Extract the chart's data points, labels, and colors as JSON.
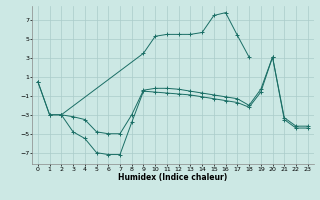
{
  "xlabel": "Humidex (Indice chaleur)",
  "background_color": "#cce8e4",
  "grid_color": "#aaccca",
  "line_color": "#1a6e65",
  "xlim": [
    -0.5,
    23.5
  ],
  "ylim": [
    -8.2,
    8.5
  ],
  "yticks": [
    -7,
    -5,
    -3,
    -1,
    1,
    3,
    5,
    7
  ],
  "xticks": [
    0,
    1,
    2,
    3,
    4,
    5,
    6,
    7,
    8,
    9,
    10,
    11,
    12,
    13,
    14,
    15,
    16,
    17,
    18,
    19,
    20,
    21,
    22,
    23
  ],
  "series1_x": [
    0,
    1,
    2,
    9,
    10,
    11,
    12,
    13,
    14,
    15,
    16,
    17,
    18
  ],
  "series1_y": [
    0.5,
    -3.0,
    -3.0,
    3.5,
    5.3,
    5.5,
    5.5,
    5.5,
    5.7,
    7.5,
    7.8,
    5.4,
    3.1
  ],
  "series2_x": [
    2,
    3,
    4,
    5,
    6,
    7,
    8,
    9,
    10,
    11,
    12,
    13,
    14,
    15,
    16,
    17,
    18,
    19,
    20,
    21,
    22,
    23
  ],
  "series2_y": [
    -3.0,
    -4.8,
    -5.5,
    -7.0,
    -7.2,
    -7.2,
    -3.8,
    -0.5,
    -0.6,
    -0.7,
    -0.8,
    -0.9,
    -1.1,
    -1.3,
    -1.5,
    -1.7,
    -2.2,
    -0.6,
    3.1,
    -3.5,
    -4.4,
    -4.4
  ],
  "series3_x": [
    0,
    1,
    2,
    3,
    4,
    5,
    6,
    7,
    8,
    9,
    10,
    11,
    12,
    13,
    14,
    15,
    16,
    17,
    18,
    19,
    20,
    21,
    22,
    23
  ],
  "series3_y": [
    0.5,
    -3.0,
    -3.0,
    -3.2,
    -3.5,
    -4.8,
    -5.0,
    -5.0,
    -3.0,
    -0.4,
    -0.2,
    -0.2,
    -0.3,
    -0.5,
    -0.7,
    -0.9,
    -1.1,
    -1.3,
    -2.0,
    -0.3,
    3.1,
    -3.3,
    -4.2,
    -4.2
  ]
}
